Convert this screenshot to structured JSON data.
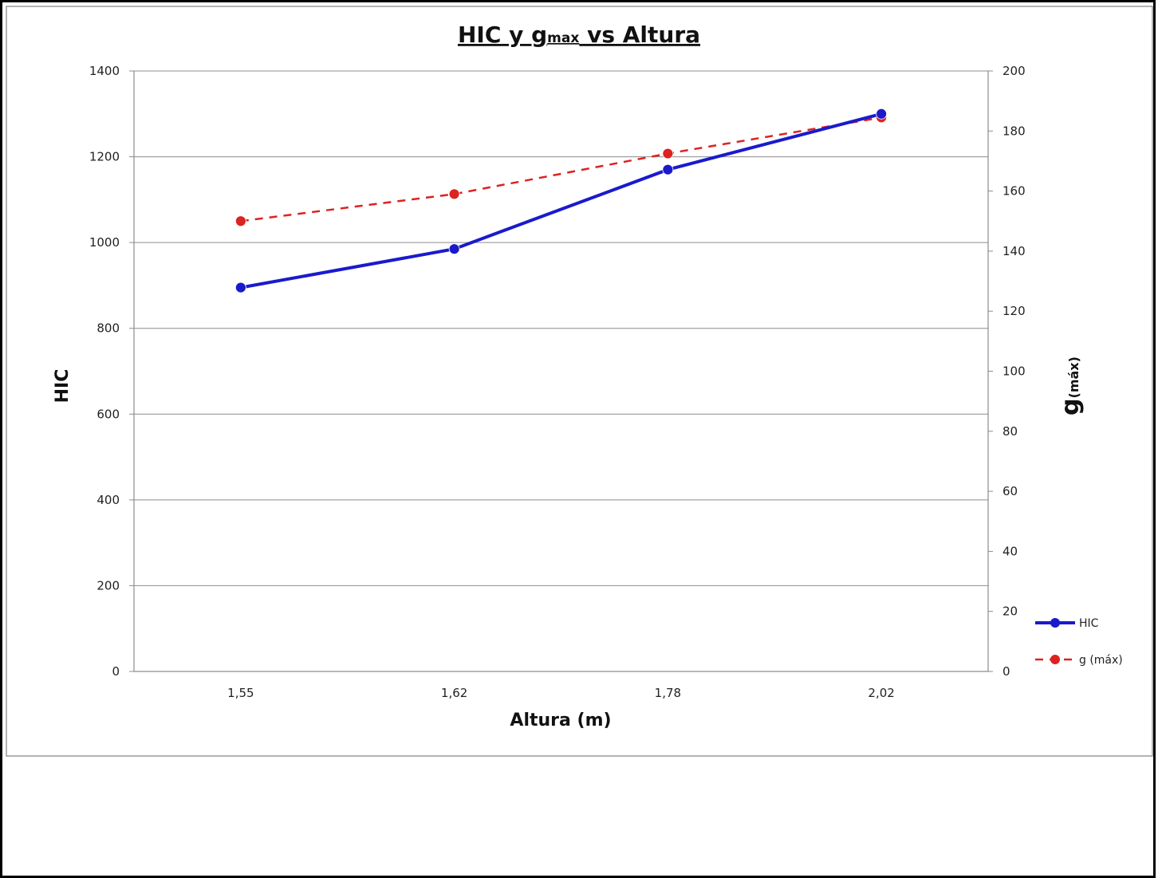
{
  "chart_data": {
    "type": "line",
    "title": {
      "base": "HIC y g",
      "sub": "max",
      "rest": " vs Altura"
    },
    "xlabel": "Altura (m)",
    "ylabel": "HIC",
    "ylabel_right": {
      "base": "g",
      "sub": "(máx)"
    },
    "categories": [
      "1,55",
      "1,62",
      "1,78",
      "2,02"
    ],
    "ylim": [
      0,
      1400
    ],
    "yticks": [
      0,
      200,
      400,
      600,
      800,
      1000,
      1200,
      1400
    ],
    "ylim_right": [
      0,
      200
    ],
    "yticks_right": [
      0,
      20,
      40,
      60,
      80,
      100,
      120,
      140,
      160,
      180,
      200
    ],
    "grid": true,
    "legend_position": "right",
    "series": [
      {
        "name": "HIC",
        "axis": "left",
        "values": [
          895,
          985,
          1170,
          1300
        ],
        "color": "#1a1acc",
        "style": "solid"
      },
      {
        "name": "g (máx)",
        "axis": "right",
        "values": [
          150,
          159,
          172.5,
          184.5
        ],
        "color": "#dd2222",
        "style": "dashed"
      }
    ]
  }
}
